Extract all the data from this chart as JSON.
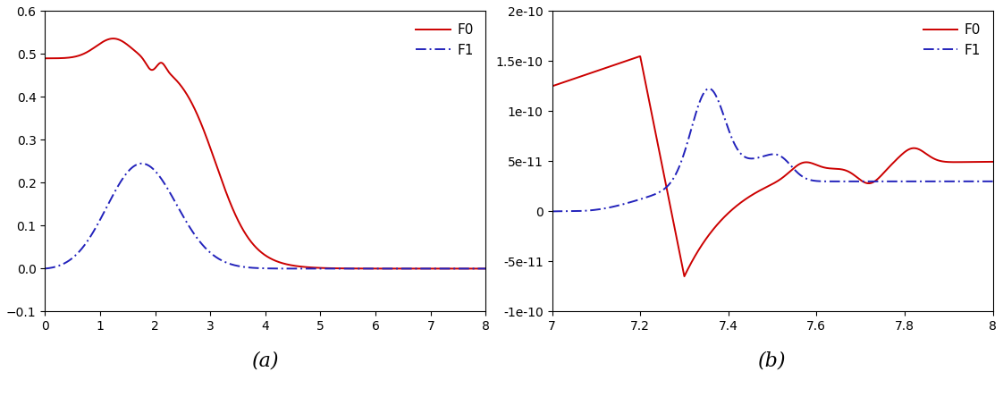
{
  "panel_a": {
    "xlim": [
      0,
      8
    ],
    "ylim": [
      -0.1,
      0.6
    ],
    "yticks": [
      -0.1,
      0,
      0.1,
      0.2,
      0.3,
      0.4,
      0.5,
      0.6
    ],
    "xticks": [
      0,
      1,
      2,
      3,
      4,
      5,
      6,
      7,
      8
    ],
    "label": "(a)",
    "F0_color": "#cc0000",
    "F1_color": "#2222bb",
    "F0_linestyle": "solid",
    "F1_linestyle": "dashdot"
  },
  "panel_b": {
    "xlim": [
      7,
      8
    ],
    "ylim": [
      -1e-10,
      2e-10
    ],
    "ytick_vals": [
      -1e-10,
      -5e-11,
      0,
      5e-11,
      1e-10,
      1.5e-10,
      2e-10
    ],
    "ytick_labels": [
      "-1e-10",
      "-5e-11",
      "0",
      "5e-11",
      "1e-10",
      "1.5e-10",
      "2e-10"
    ],
    "xticks": [
      7.0,
      7.2,
      7.4,
      7.6,
      7.8,
      8.0
    ],
    "xtick_labels": [
      "7",
      "7.2",
      "7.4",
      "7.6",
      "7.8",
      "8"
    ],
    "label": "(b)",
    "F0_color": "#cc0000",
    "F1_color": "#2222bb",
    "F0_linestyle": "solid",
    "F1_linestyle": "dashdot"
  },
  "legend_F0": "F0",
  "legend_F1": "F1",
  "bg_color": "#ffffff",
  "figure_bg": "#ffffff"
}
